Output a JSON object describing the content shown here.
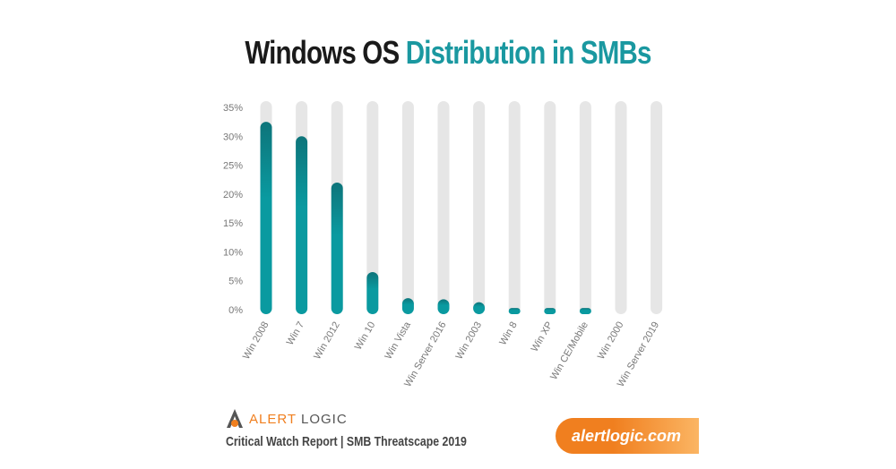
{
  "title": {
    "part1": "Windows OS",
    "part2": "Distribution in SMBs"
  },
  "chart_data": {
    "type": "bar",
    "title": "Windows OS Distribution in SMBs",
    "categories": [
      "Win 2008",
      "Win 7",
      "Win 2012",
      "Win 10",
      "Win Vista",
      "Win Server 2016",
      "Win 2003",
      "Win 8",
      "Win XP",
      "Win CE/Mobile",
      "Win 2000",
      "Win Server 2019"
    ],
    "values": [
      32.5,
      30,
      22,
      6.5,
      2,
      1.8,
      1.3,
      0.3,
      0.3,
      0.3,
      0,
      0
    ],
    "ylim": [
      0,
      35
    ],
    "yticks": [
      "0%",
      "5%",
      "10%",
      "15%",
      "20%",
      "25%",
      "30%",
      "35%"
    ],
    "grid": false,
    "colors": {
      "bar": "#0a9aa0",
      "bar_top": "#0d747a",
      "track": "#e6e6e6"
    }
  },
  "footer": {
    "logo_alert": "ALERT",
    "logo_logic": "LOGIC",
    "subtitle": "Critical Watch Report | SMB Threatscape 2019",
    "url": "alertlogic.com"
  }
}
